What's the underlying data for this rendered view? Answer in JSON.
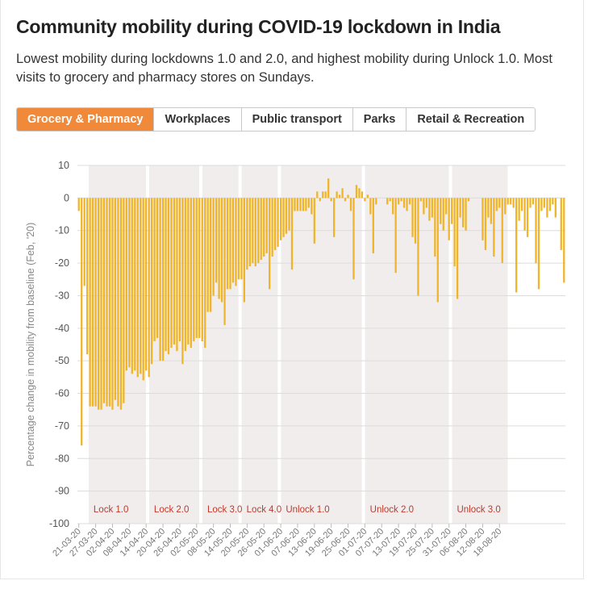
{
  "title": "Community mobility during COVID-19 lockdown in India",
  "subtitle": "Lowest mobility during lockdowns 1.0 and 2.0, and highest mobility during Unlock 1.0. Most visits to grocery and pharmacy stores on Sundays.",
  "tabs": [
    {
      "label": "Grocery & Pharmacy",
      "active": true
    },
    {
      "label": "Workplaces",
      "active": false
    },
    {
      "label": "Public transport",
      "active": false
    },
    {
      "label": "Parks",
      "active": false
    },
    {
      "label": "Retail & Recreation",
      "active": false
    }
  ],
  "colors": {
    "bar": "#f0b429",
    "tab_active": "#f08a3a",
    "band": "#f1eded",
    "phase_label": "#c0392b"
  },
  "chart_data": {
    "type": "bar",
    "title": "",
    "xlabel": "",
    "ylabel": "Percentage change in mobility from baseline (Feb, '20)",
    "ylim": [
      -100,
      10
    ],
    "yticks": [
      10,
      0,
      -10,
      -20,
      -30,
      -40,
      -50,
      -60,
      -70,
      -80,
      -90,
      -100
    ],
    "grid": true,
    "start_date": "21-03-20",
    "x_tick_labels": [
      "21-03-20",
      "27-03-20",
      "02-04-20",
      "08-04-20",
      "14-04-20",
      "20-04-20",
      "26-04-20",
      "02-05-20",
      "08-05-20",
      "14-05-20",
      "20-05-20",
      "26-05-20",
      "01-06-20",
      "07-06-20",
      "13-06-20",
      "19-06-20",
      "25-06-20",
      "01-07-20",
      "07-07-20",
      "13-07-20",
      "19-07-20",
      "25-07-20",
      "31-07-20",
      "06-08-20",
      "12-08-20",
      "18-08-20"
    ],
    "phases": [
      {
        "label": "Lock 1.0",
        "from": "25-03-20",
        "to": "14-04-20"
      },
      {
        "label": "Lock 2.0",
        "from": "15-04-20",
        "to": "03-05-20"
      },
      {
        "label": "Lock 3.0",
        "from": "04-05-20",
        "to": "17-05-20"
      },
      {
        "label": "Lock 4.0",
        "from": "18-05-20",
        "to": "31-05-20"
      },
      {
        "label": "Unlock 1.0",
        "from": "01-06-20",
        "to": "30-06-20"
      },
      {
        "label": "Unlock 2.0",
        "from": "01-07-20",
        "to": "31-07-20"
      },
      {
        "label": "Unlock 3.0",
        "from": "01-08-20",
        "to": "21-08-20"
      }
    ],
    "values": [
      -4,
      -76,
      -27,
      -48,
      -64,
      -64,
      -64,
      -65,
      -65,
      -63,
      -64,
      -64,
      -65,
      -62,
      -64,
      -65,
      -63,
      -53,
      -52,
      -54,
      -53,
      -55,
      -54,
      -56,
      -53,
      -55,
      -51,
      -44,
      -43,
      -50,
      -50,
      -47,
      -48,
      -46,
      -45,
      -47,
      -44,
      -51,
      -47,
      -45,
      -46,
      -44,
      -43,
      -43,
      -44,
      -46,
      -35,
      -35,
      -30,
      -26,
      -31,
      -32,
      -39,
      -28,
      -28,
      -26,
      -27,
      -25,
      -25,
      -32,
      -22,
      -21,
      -20,
      -21,
      -20,
      -19,
      -18,
      -17,
      -28,
      -18,
      -16,
      -15,
      -13,
      -12,
      -11,
      -10,
      -22,
      -4,
      -4,
      -4,
      -4,
      -4,
      -3,
      -5,
      -14,
      2,
      -1,
      2,
      2,
      6,
      -1,
      -12,
      2,
      1,
      3,
      -1,
      1,
      -4,
      -25,
      4,
      3,
      2,
      -1,
      1,
      -5,
      -17,
      -2,
      0,
      0,
      0,
      -2,
      -1,
      -5,
      -23,
      -2,
      -1,
      -3,
      -4,
      -2,
      -12,
      -14,
      -30,
      -1,
      -5,
      -3,
      -7,
      -6,
      -18,
      -32,
      -8,
      -10,
      -5,
      -13,
      -8,
      -21,
      -31,
      -6,
      -9,
      -10,
      -1,
      0,
      0,
      0,
      0,
      -13,
      -16,
      -6,
      -8,
      -18,
      -4,
      -3,
      -20,
      -5,
      -2,
      -2,
      -3,
      -29,
      -7,
      -4,
      -10,
      -12,
      -3,
      -2,
      -20,
      -28,
      -4,
      -3,
      -6,
      -4,
      -2,
      -6,
      0,
      -16,
      -26
    ]
  }
}
